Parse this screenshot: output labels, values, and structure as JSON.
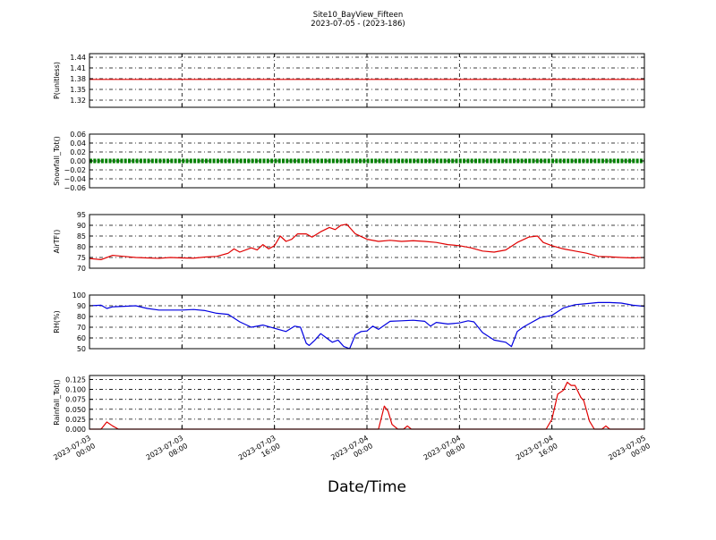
{
  "title_line1": "Site10_BayView_Fifteen",
  "title_line2": "2023-07-05 - (2023-186)",
  "x_axis_label": "Date/Time",
  "chart_data": {
    "type": "line",
    "x_range": [
      "2023-07-03T00:00",
      "2023-07-05T00:00"
    ],
    "x_ticks": [
      {
        "t": "2023-07-03T00:00",
        "label1": "2023-07-03",
        "label2": "00:00"
      },
      {
        "t": "2023-07-03T08:00",
        "label1": "2023-07-03",
        "label2": "08:00"
      },
      {
        "t": "2023-07-03T16:00",
        "label1": "2023-07-03",
        "label2": "16:00"
      },
      {
        "t": "2023-07-04T00:00",
        "label1": "2023-07-04",
        "label2": "00:00"
      },
      {
        "t": "2023-07-04T08:00",
        "label1": "2023-07-04",
        "label2": "08:00"
      },
      {
        "t": "2023-07-04T16:00",
        "label1": "2023-07-04",
        "label2": "16:00"
      },
      {
        "t": "2023-07-05T00:00",
        "label1": "2023-07-05",
        "label2": "00:00"
      }
    ],
    "grid": true,
    "panels": [
      {
        "ylabel": "P(unitless)",
        "color": "#e00000",
        "ylim": [
          1.3,
          1.45
        ],
        "yticks": [
          1.32,
          1.35,
          1.38,
          1.41,
          1.44
        ],
        "ytick_labels": [
          "1.32",
          "1.35",
          "1.38",
          "1.41",
          "1.44"
        ],
        "marker": false,
        "data": [
          [
            "2023-07-03T00:00",
            1.378
          ],
          [
            "2023-07-05T00:00",
            1.378
          ]
        ]
      },
      {
        "ylabel": "Snowfall_Tot()",
        "color": "#008000",
        "ylim": [
          -0.06,
          0.06
        ],
        "yticks": [
          -0.06,
          -0.04,
          -0.02,
          0.0,
          0.02,
          0.04,
          0.06
        ],
        "ytick_labels": [
          "−0.06",
          "−0.04",
          "−0.02",
          "0.00",
          "0.02",
          "0.04",
          "0.06"
        ],
        "marker": true,
        "data": [
          [
            "2023-07-03T00:00",
            0.0
          ],
          [
            "2023-07-05T00:00",
            0.0
          ]
        ]
      },
      {
        "ylabel": "AirTF()",
        "color": "#e00000",
        "ylim": [
          70,
          95
        ],
        "yticks": [
          70,
          75,
          80,
          85,
          90,
          95
        ],
        "ytick_labels": [
          "70",
          "75",
          "80",
          "85",
          "90",
          "95"
        ],
        "marker": false,
        "data": [
          [
            "2023-07-03T00:00",
            74.5
          ],
          [
            "2023-07-03T01:00",
            74
          ],
          [
            "2023-07-03T02:00",
            76
          ],
          [
            "2023-07-03T03:00",
            75.5
          ],
          [
            "2023-07-03T04:00",
            75
          ],
          [
            "2023-07-03T05:00",
            74.8
          ],
          [
            "2023-07-03T06:00",
            74.6
          ],
          [
            "2023-07-03T07:00",
            75
          ],
          [
            "2023-07-03T08:00",
            74.8
          ],
          [
            "2023-07-03T09:00",
            74.7
          ],
          [
            "2023-07-03T10:00",
            75.2
          ],
          [
            "2023-07-03T11:00",
            75.5
          ],
          [
            "2023-07-03T12:00",
            77
          ],
          [
            "2023-07-03T12:30",
            79
          ],
          [
            "2023-07-03T13:00",
            77.5
          ],
          [
            "2023-07-03T14:00",
            79.5
          ],
          [
            "2023-07-03T14:30",
            78.5
          ],
          [
            "2023-07-03T15:00",
            81
          ],
          [
            "2023-07-03T15:30",
            79
          ],
          [
            "2023-07-03T16:00",
            80.5
          ],
          [
            "2023-07-03T16:30",
            85
          ],
          [
            "2023-07-03T17:00",
            82.5
          ],
          [
            "2023-07-03T17:30",
            83.5
          ],
          [
            "2023-07-03T18:00",
            86
          ],
          [
            "2023-07-03T18:45",
            86
          ],
          [
            "2023-07-03T19:15",
            84.5
          ],
          [
            "2023-07-03T20:00",
            87
          ],
          [
            "2023-07-03T20:45",
            89
          ],
          [
            "2023-07-03T21:15",
            88
          ],
          [
            "2023-07-03T21:45",
            90
          ],
          [
            "2023-07-03T22:15",
            90.5
          ],
          [
            "2023-07-03T23:00",
            86
          ],
          [
            "2023-07-04T00:00",
            83.5
          ],
          [
            "2023-07-04T01:00",
            82.5
          ],
          [
            "2023-07-04T02:00",
            83
          ],
          [
            "2023-07-04T03:00",
            82.5
          ],
          [
            "2023-07-04T04:00",
            82.8
          ],
          [
            "2023-07-04T05:00",
            82.5
          ],
          [
            "2023-07-04T06:00",
            82
          ],
          [
            "2023-07-04T07:00",
            81
          ],
          [
            "2023-07-04T08:00",
            80.5
          ],
          [
            "2023-07-04T09:00",
            79.5
          ],
          [
            "2023-07-04T10:00",
            78
          ],
          [
            "2023-07-04T11:00",
            77.5
          ],
          [
            "2023-07-04T12:00",
            78.5
          ],
          [
            "2023-07-04T13:00",
            82
          ],
          [
            "2023-07-04T14:00",
            84.5
          ],
          [
            "2023-07-04T14:45",
            85
          ],
          [
            "2023-07-04T15:15",
            82
          ],
          [
            "2023-07-04T16:00",
            80.5
          ],
          [
            "2023-07-04T17:00",
            79
          ],
          [
            "2023-07-04T18:00",
            78
          ],
          [
            "2023-07-04T19:00",
            77
          ],
          [
            "2023-07-04T20:00",
            75.5
          ],
          [
            "2023-07-04T21:00",
            75.3
          ],
          [
            "2023-07-04T22:00",
            75
          ],
          [
            "2023-07-04T23:00",
            74.8
          ],
          [
            "2023-07-05T00:00",
            75
          ]
        ]
      },
      {
        "ylabel": "RH(%)",
        "color": "#0000e0",
        "ylim": [
          50,
          100
        ],
        "yticks": [
          50,
          60,
          70,
          80,
          90,
          100
        ],
        "ytick_labels": [
          "50",
          "60",
          "70",
          "80",
          "90",
          "100"
        ],
        "marker": false,
        "data": [
          [
            "2023-07-03T00:00",
            90
          ],
          [
            "2023-07-03T01:00",
            90.5
          ],
          [
            "2023-07-03T01:30",
            87.5
          ],
          [
            "2023-07-03T02:00",
            89
          ],
          [
            "2023-07-03T03:00",
            89.5
          ],
          [
            "2023-07-03T04:00",
            90
          ],
          [
            "2023-07-03T05:00",
            87.5
          ],
          [
            "2023-07-03T06:00",
            86
          ],
          [
            "2023-07-03T07:00",
            86
          ],
          [
            "2023-07-03T08:00",
            86
          ],
          [
            "2023-07-03T09:00",
            86.5
          ],
          [
            "2023-07-03T10:00",
            85.5
          ],
          [
            "2023-07-03T11:00",
            83
          ],
          [
            "2023-07-03T12:00",
            82
          ],
          [
            "2023-07-03T13:00",
            75
          ],
          [
            "2023-07-03T14:00",
            70
          ],
          [
            "2023-07-03T15:00",
            72
          ],
          [
            "2023-07-03T16:00",
            69
          ],
          [
            "2023-07-03T17:00",
            66
          ],
          [
            "2023-07-03T17:45",
            71
          ],
          [
            "2023-07-03T18:15",
            70
          ],
          [
            "2023-07-03T18:45",
            55
          ],
          [
            "2023-07-03T19:00",
            53
          ],
          [
            "2023-07-03T19:30",
            58
          ],
          [
            "2023-07-03T20:00",
            64
          ],
          [
            "2023-07-03T20:30",
            60
          ],
          [
            "2023-07-03T21:00",
            56
          ],
          [
            "2023-07-03T21:30",
            58
          ],
          [
            "2023-07-03T22:00",
            52
          ],
          [
            "2023-07-03T22:30",
            50
          ],
          [
            "2023-07-03T23:00",
            63
          ],
          [
            "2023-07-03T23:30",
            66
          ],
          [
            "2023-07-04T00:00",
            66.5
          ],
          [
            "2023-07-04T00:30",
            71
          ],
          [
            "2023-07-04T01:00",
            68
          ],
          [
            "2023-07-04T02:00",
            75.5
          ],
          [
            "2023-07-04T03:00",
            76
          ],
          [
            "2023-07-04T04:00",
            76.5
          ],
          [
            "2023-07-04T05:00",
            75.5
          ],
          [
            "2023-07-04T05:30",
            71
          ],
          [
            "2023-07-04T06:00",
            74.5
          ],
          [
            "2023-07-04T07:00",
            73
          ],
          [
            "2023-07-04T08:00",
            74
          ],
          [
            "2023-07-04T08:45",
            76
          ],
          [
            "2023-07-04T09:15",
            75
          ],
          [
            "2023-07-04T10:00",
            65
          ],
          [
            "2023-07-04T11:00",
            58
          ],
          [
            "2023-07-04T12:00",
            56
          ],
          [
            "2023-07-04T12:30",
            52
          ],
          [
            "2023-07-04T13:00",
            66
          ],
          [
            "2023-07-04T13:30",
            70
          ],
          [
            "2023-07-04T14:00",
            73
          ],
          [
            "2023-07-04T15:00",
            79
          ],
          [
            "2023-07-04T16:00",
            81
          ],
          [
            "2023-07-04T17:00",
            88
          ],
          [
            "2023-07-04T18:00",
            91
          ],
          [
            "2023-07-04T19:00",
            92
          ],
          [
            "2023-07-04T20:00",
            93
          ],
          [
            "2023-07-04T21:00",
            93
          ],
          [
            "2023-07-04T22:00",
            92.5
          ],
          [
            "2023-07-04T23:00",
            90.5
          ],
          [
            "2023-07-05T00:00",
            89.5
          ]
        ]
      },
      {
        "ylabel": "Rainfall_Tot()",
        "color": "#e00000",
        "ylim": [
          0,
          0.135
        ],
        "yticks": [
          0.0,
          0.025,
          0.05,
          0.075,
          0.1,
          0.125
        ],
        "ytick_labels": [
          "0.000",
          "0.025",
          "0.050",
          "0.075",
          "0.100",
          "0.125"
        ],
        "marker": false,
        "data": [
          [
            "2023-07-03T00:00",
            0
          ],
          [
            "2023-07-03T01:00",
            0
          ],
          [
            "2023-07-03T01:30",
            0.018
          ],
          [
            "2023-07-03T02:00",
            0.008
          ],
          [
            "2023-07-03T02:30",
            0
          ],
          [
            "2023-07-04T00:00",
            0
          ],
          [
            "2023-07-04T01:00",
            0
          ],
          [
            "2023-07-04T01:30",
            0.058
          ],
          [
            "2023-07-04T01:50",
            0.045
          ],
          [
            "2023-07-04T02:10",
            0.012
          ],
          [
            "2023-07-04T02:40",
            0
          ],
          [
            "2023-07-04T03:10",
            0
          ],
          [
            "2023-07-04T03:30",
            0.008
          ],
          [
            "2023-07-04T03:50",
            0
          ],
          [
            "2023-07-04T12:00",
            0
          ],
          [
            "2023-07-04T15:30",
            0
          ],
          [
            "2023-07-04T16:00",
            0.025
          ],
          [
            "2023-07-04T16:30",
            0.088
          ],
          [
            "2023-07-04T17:00",
            0.098
          ],
          [
            "2023-07-04T17:20",
            0.118
          ],
          [
            "2023-07-04T17:40",
            0.11
          ],
          [
            "2023-07-04T18:00",
            0.11
          ],
          [
            "2023-07-04T18:30",
            0.08
          ],
          [
            "2023-07-04T18:45",
            0.072
          ],
          [
            "2023-07-04T19:15",
            0.02
          ],
          [
            "2023-07-04T19:40",
            0
          ],
          [
            "2023-07-04T20:20",
            0
          ],
          [
            "2023-07-04T20:40",
            0.008
          ],
          [
            "2023-07-04T21:00",
            0
          ],
          [
            "2023-07-05T00:00",
            0
          ]
        ]
      }
    ]
  }
}
